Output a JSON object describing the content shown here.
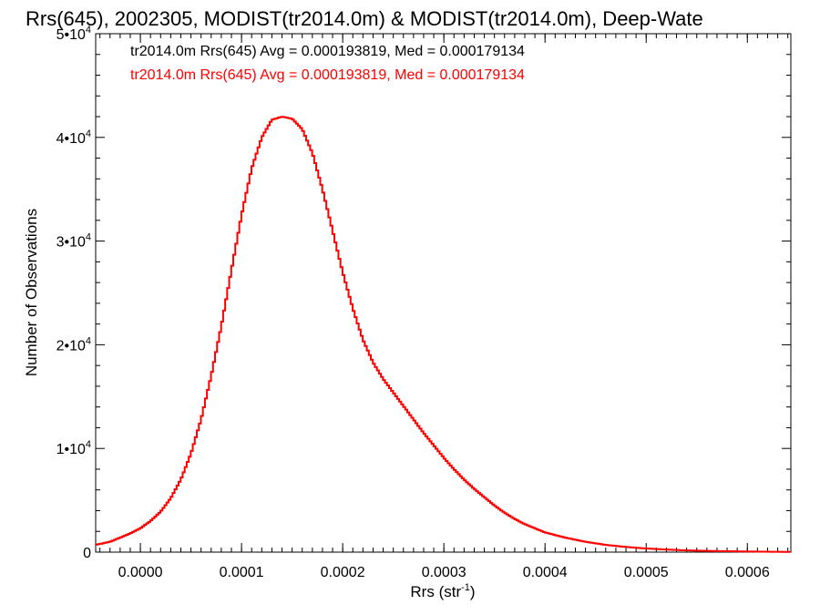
{
  "chart_data": {
    "type": "line",
    "step": true,
    "title": "Rrs(645), 2002305, MODIST(tr2014.0m) & MODIST(tr2014.0m), Deep-Wate",
    "xlabel": "Rrs (str",
    "xlabel_sup": "-1",
    "xlabel_end": ")",
    "ylabel": "Number of Observations",
    "xlim": [
      -4.42e-05,
      0.000643
    ],
    "ylim": [
      0,
      50000
    ],
    "xticks": [
      {
        "value": 0.0,
        "label": "0.0000"
      },
      {
        "value": 0.0001,
        "label": "0.0001"
      },
      {
        "value": 0.0002,
        "label": "0.0002"
      },
      {
        "value": 0.0003,
        "label": "0.0003"
      },
      {
        "value": 0.0004,
        "label": "0.0004"
      },
      {
        "value": 0.0005,
        "label": "0.0005"
      },
      {
        "value": 0.0006,
        "label": "0.0006"
      }
    ],
    "yticks": [
      {
        "value": 0,
        "base": "0",
        "exp": ""
      },
      {
        "value": 10000,
        "base": "1•10",
        "exp": "4"
      },
      {
        "value": 20000,
        "base": "2•10",
        "exp": "4"
      },
      {
        "value": 30000,
        "base": "3•10",
        "exp": "4"
      },
      {
        "value": 40000,
        "base": "4•10",
        "exp": "4"
      },
      {
        "value": 50000,
        "base": "5•10",
        "exp": "4"
      }
    ],
    "grid": false,
    "annotations": [
      {
        "text": "tr2014.0m Rrs(645) Avg = 0.000193819, Med = 0.000179134",
        "color": "#000000"
      },
      {
        "text": "tr2014.0m Rrs(645) Avg = 0.000193819, Med = 0.000179134",
        "color": "#ff0000"
      }
    ],
    "series": [
      {
        "color": "#ff0000",
        "x": [
          -4.42e-05,
          -3e-05,
          -2e-05,
          -1e-05,
          0.0,
          1e-05,
          2e-05,
          3e-05,
          4e-05,
          5e-05,
          6e-05,
          7e-05,
          8e-05,
          9e-05,
          0.0001,
          0.00011,
          0.00012,
          0.00013,
          0.00014,
          0.00015,
          0.00016,
          0.00017,
          0.00018,
          0.00019,
          0.0002,
          0.00021,
          0.00022,
          0.00023,
          0.00024,
          0.00025,
          0.00026,
          0.00027,
          0.00028,
          0.00029,
          0.0003,
          0.00031,
          0.00032,
          0.00033,
          0.00034,
          0.00035,
          0.00036,
          0.00037,
          0.00038,
          0.00039,
          0.0004,
          0.00042,
          0.00044,
          0.00046,
          0.00048,
          0.0005,
          0.00052,
          0.00054,
          0.00056,
          0.00058,
          0.0006,
          0.00062,
          0.000643
        ],
        "y": [
          700,
          1000,
          1400,
          1800,
          2300,
          3000,
          3900,
          5200,
          7000,
          9500,
          12800,
          17000,
          21800,
          27200,
          32500,
          37000,
          40000,
          41700,
          42000,
          41800,
          40800,
          38500,
          35000,
          31000,
          27000,
          23500,
          20500,
          18300,
          16700,
          15400,
          14100,
          12800,
          11500,
          10300,
          9100,
          8000,
          7000,
          6100,
          5300,
          4500,
          3800,
          3200,
          2700,
          2300,
          1900,
          1400,
          1000,
          700,
          500,
          350,
          250,
          170,
          120,
          90,
          60,
          40,
          20
        ]
      }
    ]
  }
}
